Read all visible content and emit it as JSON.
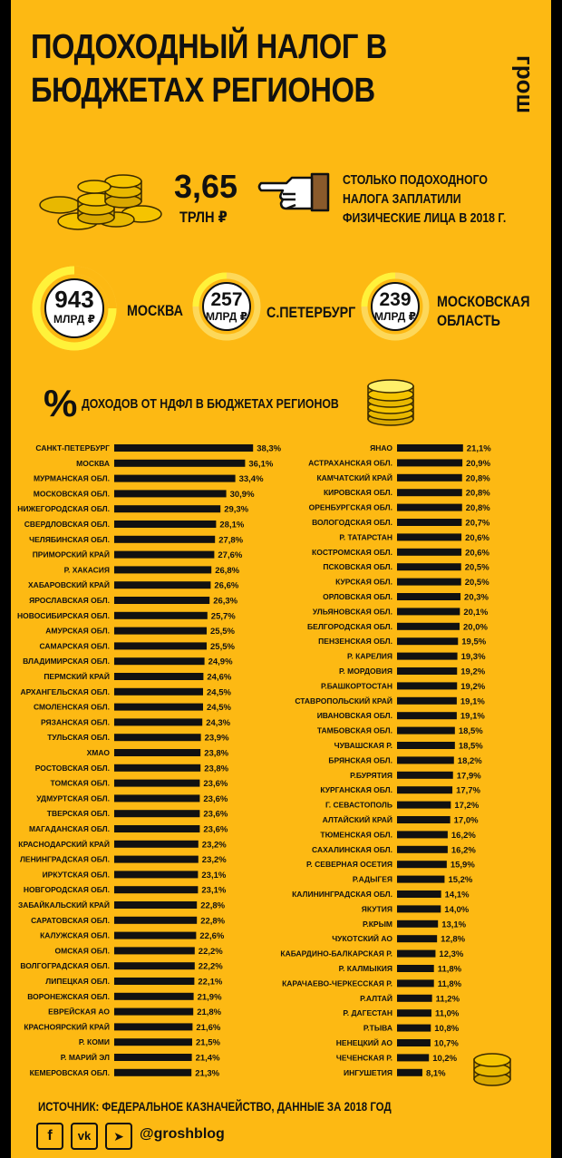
{
  "title": [
    "ПОДОХОДНЫЙ НАЛОГ В",
    "БЮДЖЕТАХ РЕГИОНОВ"
  ],
  "logo": "грош",
  "total": {
    "value": "3,65",
    "unit": "ТРЛН ₽",
    "description": [
      "СТОЛЬКО ПОДОХОДНОГО",
      "НАЛОГА ЗАПЛАТИЛИ",
      "ФИЗИЧЕСКИЕ ЛИЦА В 2018 Г."
    ]
  },
  "top_regions": [
    {
      "value": "943",
      "unit": "МЛРД ₽",
      "name": [
        "МОСКВА"
      ]
    },
    {
      "value": "257",
      "unit": "МЛРД ₽",
      "name": [
        "С.ПЕТЕРБУРГ"
      ]
    },
    {
      "value": "239",
      "unit": "МЛРД ₽",
      "name": [
        "МОСКОВСКАЯ",
        "ОБЛАСТЬ"
      ]
    }
  ],
  "chart_title_symbol": "%",
  "chart_title": "ДОХОДОВ ОТ НДФЛ В БЮДЖЕТАХ РЕГИОНОВ",
  "chart_data": {
    "type": "bar",
    "orientation": "horizontal",
    "title": "ДОХОДОВ ОТ НДФЛ В БЮДЖЕТАХ РЕГИОНОВ",
    "unit": "%",
    "bar_color": "#111111",
    "columns": [
      {
        "categories": [
          "САНКТ-ПЕТЕРБУРГ",
          "МОСКВА",
          "МУРМАНСКАЯ ОБЛ.",
          "МОСКОВСКАЯ ОБЛ.",
          "НИЖЕГОРОДСКАЯ ОБЛ.",
          "СВЕРДЛОВСКАЯ ОБЛ.",
          "ЧЕЛЯБИНСКАЯ ОБЛ.",
          "ПРИМОРСКИЙ КРАЙ",
          "Р. ХАКАСИЯ",
          "ХАБАРОВСКИЙ КРАЙ",
          "ЯРОСЛАВСКАЯ ОБЛ.",
          "НОВОСИБИРСКАЯ ОБЛ.",
          "АМУРСКАЯ ОБЛ.",
          "САМАРСКАЯ ОБЛ.",
          "ВЛАДИМИРСКАЯ ОБЛ.",
          "ПЕРМСКИЙ КРАЙ",
          "АРХАНГЕЛЬСКАЯ ОБЛ.",
          "СМОЛЕНСКАЯ ОБЛ.",
          "РЯЗАНСКАЯ ОБЛ.",
          "ТУЛЬСКАЯ ОБЛ.",
          "ХМАО",
          "РОСТОВСКАЯ ОБЛ.",
          "ТОМСКАЯ ОБЛ.",
          "УДМУРТСКАЯ ОБЛ.",
          "ТВЕРСКАЯ ОБЛ.",
          "МАГАДАНСКАЯ ОБЛ.",
          "КРАСНОДАРСКИЙ КРАЙ",
          "ЛЕНИНГРАДСКАЯ ОБЛ.",
          "ИРКУТСКАЯ ОБЛ.",
          "НОВГОРОДСКАЯ ОБЛ.",
          "ЗАБАЙКАЛЬСКИЙ КРАЙ",
          "САРАТОВСКАЯ ОБЛ.",
          "КАЛУЖСКАЯ ОБЛ.",
          "ОМСКАЯ ОБЛ.",
          "ВОЛГОГРАДСКАЯ ОБЛ.",
          "ЛИПЕЦКАЯ ОБЛ.",
          "ВОРОНЕЖСКАЯ ОБЛ.",
          "ЕВРЕЙСКАЯ АО",
          "КРАСНОЯРСКИЙ КРАЙ",
          "Р. КОМИ",
          "Р. МАРИЙ ЭЛ",
          "КЕМЕРОВСКАЯ ОБЛ."
        ],
        "values": [
          38.3,
          36.1,
          33.4,
          30.9,
          29.3,
          28.1,
          27.8,
          27.6,
          26.8,
          26.6,
          26.3,
          25.7,
          25.5,
          25.5,
          24.9,
          24.6,
          24.5,
          24.5,
          24.3,
          23.9,
          23.8,
          23.8,
          23.6,
          23.6,
          23.6,
          23.6,
          23.2,
          23.2,
          23.1,
          23.1,
          22.8,
          22.8,
          22.6,
          22.2,
          22.2,
          22.1,
          21.9,
          21.8,
          21.6,
          21.5,
          21.4,
          21.3
        ],
        "labels": [
          "38,3%",
          "36,1%",
          "33,4%",
          "30,9%",
          "29,3%",
          "28,1%",
          "27,8%",
          "27,6%",
          "26,8%",
          "26,6%",
          "26,3%",
          "25,7%",
          "25,5%",
          "25,5%",
          "24,9%",
          "24,6%",
          "24,5%",
          "24,5%",
          "24,3%",
          "23,9%",
          "23,8%",
          "23,8%",
          "23,6%",
          "23,6%",
          "23,6%",
          "23,6%",
          "23,2%",
          "23,2%",
          "23,1%",
          "23,1%",
          "22,8%",
          "22,8%",
          "22,6%",
          "22,2%",
          "22,2%",
          "22,1%",
          "21,9%",
          "21,8%",
          "21,6%",
          "21,5%",
          "21,4%",
          "21,3%"
        ]
      },
      {
        "categories": [
          "ЯНАО",
          "АСТРАХАНСКАЯ ОБЛ.",
          "КАМЧАТСКИЙ КРАЙ",
          "КИРОВСКАЯ ОБЛ.",
          "ОРЕНБУРГСКАЯ ОБЛ.",
          "ВОЛОГОДСКАЯ ОБЛ.",
          "Р. ТАТАРСТАН",
          "КОСТРОМСКАЯ ОБЛ.",
          "ПСКОВСКАЯ ОБЛ.",
          "КУРСКАЯ ОБЛ.",
          "ОРЛОВСКАЯ ОБЛ.",
          "УЛЬЯНОВСКАЯ ОБЛ.",
          "БЕЛГОРОДСКАЯ ОБЛ.",
          "ПЕНЗЕНСКАЯ ОБЛ.",
          "Р. КАРЕЛИЯ",
          "Р. МОРДОВИЯ",
          "Р.БАШКОРТОСТАН",
          "СТАВРОПОЛЬСКИЙ КРАЙ",
          "ИВАНОВСКАЯ ОБЛ.",
          "ТАМБОВСКАЯ ОБЛ.",
          "ЧУВАШСКАЯ Р.",
          "БРЯНСКАЯ ОБЛ.",
          "Р.БУРЯТИЯ",
          "КУРГАНСКАЯ ОБЛ.",
          "Г. СЕВАСТОПОЛЬ",
          "АЛТАЙСКИЙ КРАЙ",
          "ТЮМЕНСКАЯ ОБЛ.",
          "САХАЛИНСКАЯ ОБЛ.",
          "Р. СЕВЕРНАЯ ОСЕТИЯ",
          "Р.АДЫГЕЯ",
          "КАЛИНИНГРАДСКАЯ ОБЛ.",
          "ЯКУТИЯ",
          "Р.КРЫМ",
          "ЧУКОТСКИЙ АО",
          "КАБАРДИНО-БАЛКАРСКАЯ Р.",
          "Р. КАЛМЫКИЯ",
          "КАРАЧАЕВО-ЧЕРКЕССКАЯ Р.",
          "Р.АЛТАЙ",
          "Р. ДАГЕСТАН",
          "Р.ТЫВА",
          "НЕНЕЦКИЙ АО",
          "ЧЕЧЕНСКАЯ Р.",
          "ИНГУШЕТИЯ"
        ],
        "values": [
          21.1,
          20.9,
          20.8,
          20.8,
          20.8,
          20.7,
          20.6,
          20.6,
          20.5,
          20.5,
          20.3,
          20.1,
          20.0,
          19.5,
          19.3,
          19.2,
          19.2,
          19.1,
          19.1,
          18.5,
          18.5,
          18.2,
          17.9,
          17.7,
          17.2,
          17.0,
          16.2,
          16.2,
          15.9,
          15.2,
          14.1,
          14.0,
          13.1,
          12.8,
          12.3,
          11.8,
          11.8,
          11.2,
          11.0,
          10.8,
          10.7,
          10.2,
          8.1
        ],
        "labels": [
          "21,1%",
          "20,9%",
          "20,8%",
          "20,8%",
          "20,8%",
          "20,7%",
          "20,6%",
          "20,6%",
          "20,5%",
          "20,5%",
          "20,3%",
          "20,1%",
          "20,0%",
          "19,5%",
          "19,3%",
          "19,2%",
          "19,2%",
          "19,1%",
          "19,1%",
          "18,5%",
          "18,5%",
          "18,2%",
          "17,9%",
          "17,7%",
          "17,2%",
          "17,0%",
          "16,2%",
          "16,2%",
          "15,9%",
          "15,2%",
          "14,1%",
          "14,0%",
          "13,1%",
          "12,8%",
          "12,3%",
          "11,8%",
          "11,8%",
          "11,2%",
          "11,0%",
          "10,8%",
          "10,7%",
          "10,2%",
          "8,1%"
        ]
      }
    ]
  },
  "source": "ИСТОЧНИК: ФЕДЕРАЛЬНОЕ КАЗНАЧЕЙСТВО, ДАННЫЕ ЗА 2018 ГОД",
  "socials": {
    "icons": [
      "facebook-icon",
      "vk-icon",
      "telegram-icon"
    ],
    "icon_glyphs": [
      "f",
      "vk",
      "➤"
    ],
    "handle": "@groshblog"
  },
  "colors": {
    "background": "#fdb913",
    "bars": "#111111",
    "coin": "#f5c400",
    "coin_dark": "#c99a00"
  }
}
